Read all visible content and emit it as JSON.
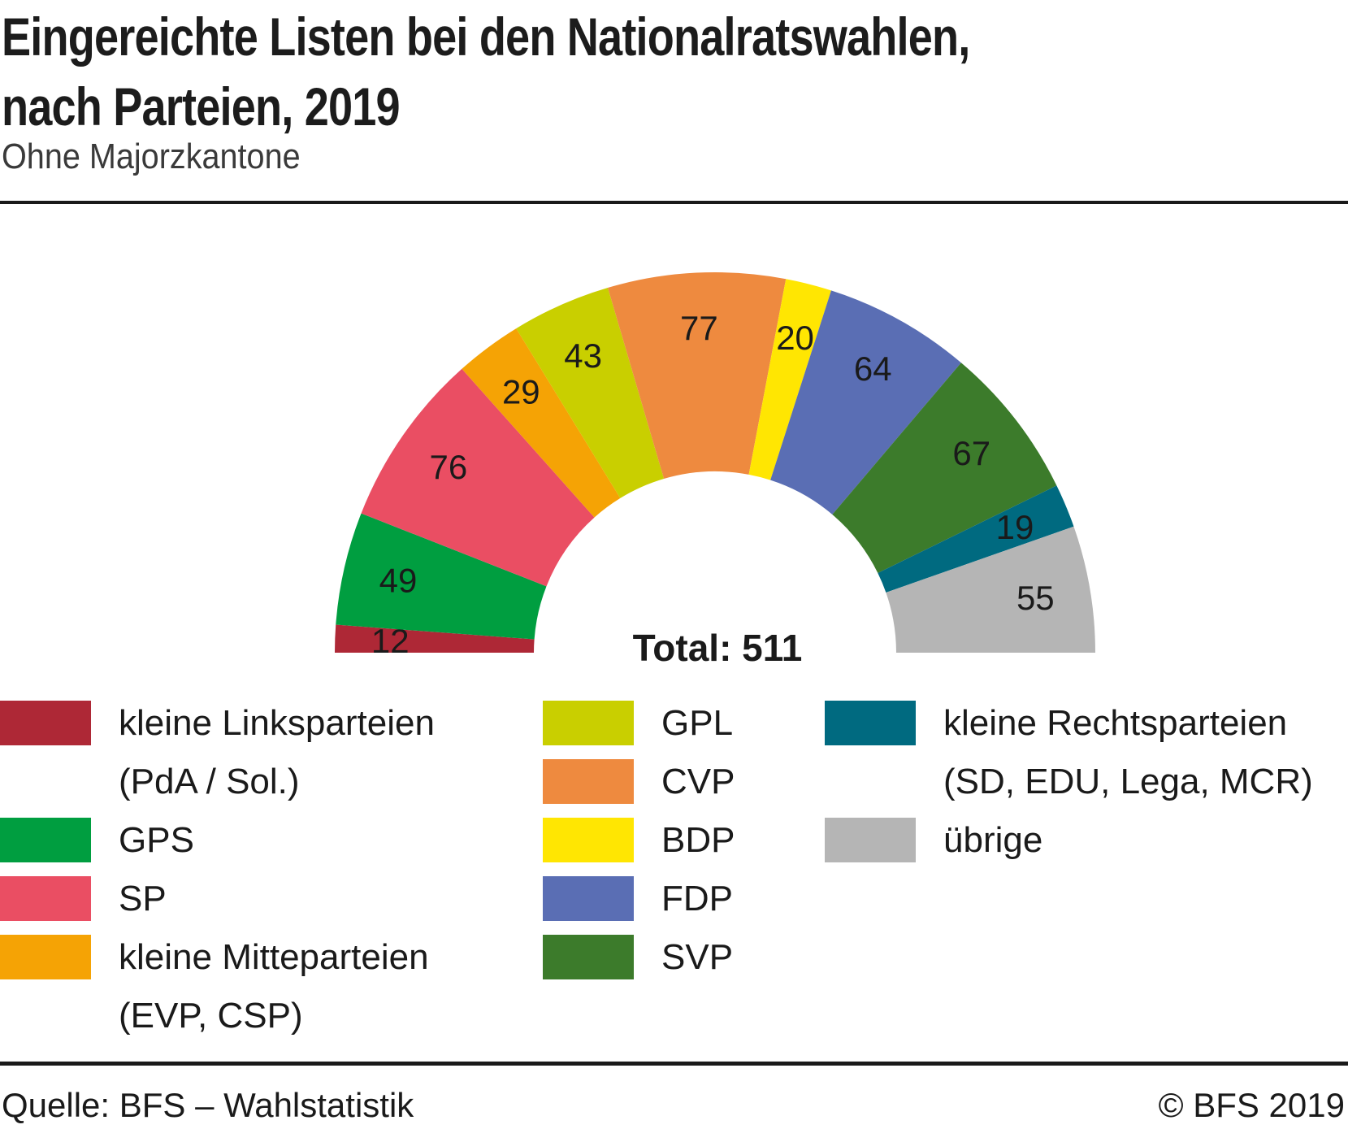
{
  "page": {
    "title_line1": "Eingereichte Listen bei den Nationalratswahlen,",
    "title_line2": "nach Parteien, 2019",
    "subtitle": "Ohne Majorzkantone",
    "source": "Quelle: BFS – Wahlstatistik",
    "copyright": "© BFS 2019"
  },
  "chart_data": {
    "type": "pie",
    "shape": "half-donut",
    "start_angle_deg": 180,
    "end_angle_deg": 0,
    "total": 511,
    "total_label": "Total: 511",
    "value_label_color": "#1a1a1a",
    "series": [
      {
        "key": "kleine-linksparteien",
        "label": "kleine Linksparteien (PdA / Sol.)",
        "value": 12,
        "color": "#AE2836"
      },
      {
        "key": "gps",
        "label": "GPS",
        "value": 49,
        "color": "#009E40"
      },
      {
        "key": "sp",
        "label": "SP",
        "value": 76,
        "color": "#EA4E63"
      },
      {
        "key": "kleine-mitteparteien",
        "label": "kleine Mitteparteien (EVP, CSP)",
        "value": 29,
        "color": "#F5A305"
      },
      {
        "key": "gpl",
        "label": "GPL",
        "value": 43,
        "color": "#C9CF00"
      },
      {
        "key": "cvp",
        "label": "CVP",
        "value": 77,
        "color": "#EE8A3F"
      },
      {
        "key": "bdp",
        "label": "BDP",
        "value": 20,
        "color": "#FFE602"
      },
      {
        "key": "fdp",
        "label": "FDP",
        "value": 64,
        "color": "#5A6EB4"
      },
      {
        "key": "svp",
        "label": "SVP",
        "value": 67,
        "color": "#3C7B2B"
      },
      {
        "key": "kleine-rechtsparteien",
        "label": "kleine Rechtsparteien (SD, EDU, Lega, MCR)",
        "value": 19,
        "color": "#006A80"
      },
      {
        "key": "uebrige",
        "label": "übrige",
        "value": 55,
        "color": "#B5B5B5"
      }
    ]
  },
  "legend": {
    "columns": [
      {
        "items": [
          {
            "key": "kleine-linksparteien",
            "color": "#AE2836",
            "lines": [
              "kleine Linksparteien",
              "(PdA / Sol.)"
            ]
          },
          {
            "key": "gps",
            "color": "#009E40",
            "lines": [
              "GPS"
            ]
          },
          {
            "key": "sp",
            "color": "#EA4E63",
            "lines": [
              "SP"
            ]
          },
          {
            "key": "kleine-mitteparteien",
            "color": "#F5A305",
            "lines": [
              "kleine Mitteparteien",
              "(EVP, CSP)"
            ]
          }
        ]
      },
      {
        "items": [
          {
            "key": "gpl",
            "color": "#C9CF00",
            "lines": [
              "GPL"
            ]
          },
          {
            "key": "cvp",
            "color": "#EE8A3F",
            "lines": [
              "CVP"
            ]
          },
          {
            "key": "bdp",
            "color": "#FFE602",
            "lines": [
              "BDP"
            ]
          },
          {
            "key": "fdp",
            "color": "#5A6EB4",
            "lines": [
              "FDP"
            ]
          },
          {
            "key": "svp",
            "color": "#3C7B2B",
            "lines": [
              "SVP"
            ]
          }
        ]
      },
      {
        "items": [
          {
            "key": "kleine-rechtsparteien",
            "color": "#006A80",
            "lines": [
              "kleine Rechtsparteien",
              "(SD, EDU, Lega, MCR)"
            ]
          },
          {
            "key": "uebrige",
            "color": "#B5B5B5",
            "lines": [
              "übrige"
            ]
          }
        ]
      }
    ]
  }
}
